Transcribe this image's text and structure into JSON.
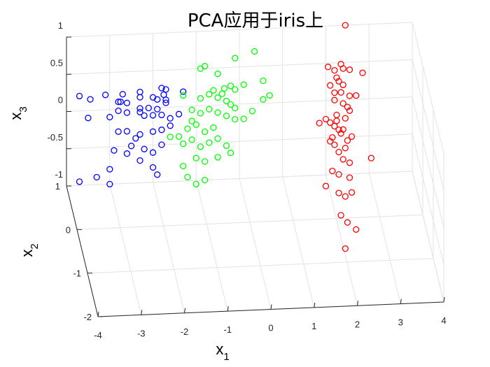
{
  "chart_data": {
    "type": "scatter",
    "title": "PCA应用于iris上",
    "xlabel": "x",
    "xlabel_sub": "1",
    "ylabel": "x",
    "ylabel_sub": "2",
    "zlabel": "x",
    "zlabel_sub": "3",
    "xlim": [
      -4,
      4
    ],
    "ylim": [
      -2,
      1
    ],
    "zlim": [
      -1,
      1
    ],
    "xticks": [
      "-4",
      "-3",
      "-2",
      "-1",
      "0",
      "1",
      "2",
      "3",
      "4"
    ],
    "yticks": [
      "-2",
      "-1",
      "0",
      "1"
    ],
    "zticks": [
      "-1",
      "-0.5",
      "0",
      "0.5",
      "1"
    ],
    "grid": true,
    "marker": "open-circle",
    "series": [
      {
        "color": "#0000ff",
        "points": [
          [
            -3.7,
            0.2
          ],
          [
            -3.45,
            0.15
          ],
          [
            -3.1,
            0.2
          ],
          [
            -2.8,
            0.1
          ],
          [
            -2.7,
            0.2
          ],
          [
            -2.75,
            0.1
          ],
          [
            -2.3,
            0.22
          ],
          [
            -2.0,
            0.14
          ],
          [
            -1.8,
            0.26
          ],
          [
            -1.7,
            0.24
          ],
          [
            -1.3,
            0.2
          ],
          [
            -1.7,
            0.1
          ],
          [
            -1.75,
            0.17
          ],
          [
            -1.9,
            0.11
          ],
          [
            -2.3,
            -0.05
          ],
          [
            -2.6,
            0.08
          ],
          [
            -2.3,
            0.15
          ],
          [
            -3.5,
            -0.1
          ],
          [
            -3.0,
            -0.1
          ],
          [
            -2.8,
            -0.02
          ],
          [
            -2.6,
            -0.05
          ],
          [
            -2.3,
            0.0
          ],
          [
            -2.1,
            0.0
          ],
          [
            -1.9,
            -0.02
          ],
          [
            -1.7,
            0.06
          ],
          [
            -2.2,
            -0.1
          ],
          [
            -2.0,
            -0.1
          ],
          [
            -1.8,
            -0.1
          ],
          [
            -1.6,
            -0.15
          ],
          [
            -1.4,
            -0.1
          ],
          [
            -2.8,
            -0.3
          ],
          [
            -2.6,
            -0.3
          ],
          [
            -2.4,
            -0.4
          ],
          [
            -2.3,
            -0.35
          ],
          [
            -2.0,
            -0.32
          ],
          [
            -1.8,
            -0.3
          ],
          [
            -1.6,
            -0.25
          ],
          [
            -2.9,
            -0.55
          ],
          [
            -2.5,
            -0.5
          ],
          [
            -2.2,
            -0.55
          ],
          [
            -2.0,
            -0.6
          ],
          [
            -1.8,
            -0.5
          ],
          [
            -3.7,
            -0.95
          ],
          [
            -3.3,
            -0.9
          ],
          [
            -3.0,
            -0.8
          ],
          [
            -2.6,
            -0.6
          ],
          [
            -2.3,
            -0.7
          ],
          [
            -3.0,
            -1.0
          ],
          [
            -2.0,
            -0.8
          ],
          [
            -1.9,
            -0.9
          ]
        ]
      },
      {
        "color": "#00ff00",
        "points": [
          [
            0.35,
            0.7
          ],
          [
            -0.1,
            0.62
          ],
          [
            -0.5,
            0.42
          ],
          [
            -0.8,
            0.53
          ],
          [
            -0.9,
            0.5
          ],
          [
            -0.35,
            0.22
          ],
          [
            0.1,
            0.26
          ],
          [
            0.55,
            0.3
          ],
          [
            0.7,
            0.1
          ],
          [
            0.55,
            0.05
          ],
          [
            -0.1,
            0.2
          ],
          [
            -0.2,
            0.25
          ],
          [
            -0.4,
            0.15
          ],
          [
            -0.6,
            0.2
          ],
          [
            -0.2,
            0.0
          ],
          [
            -0.1,
            -0.05
          ],
          [
            -0.3,
            0.05
          ],
          [
            -0.5,
            0.1
          ],
          [
            -0.7,
            0.15
          ],
          [
            -0.9,
            0.1
          ],
          [
            -1.3,
            0.15
          ],
          [
            -1.1,
            -0.05
          ],
          [
            -0.9,
            -0.1
          ],
          [
            -0.7,
            -0.05
          ],
          [
            -0.5,
            -0.1
          ],
          [
            -0.3,
            -0.15
          ],
          [
            -0.1,
            -0.2
          ],
          [
            0.1,
            -0.2
          ],
          [
            0.3,
            -0.1
          ],
          [
            -0.6,
            -0.3
          ],
          [
            -0.8,
            -0.35
          ],
          [
            -1.0,
            -0.25
          ],
          [
            -1.2,
            -0.3
          ],
          [
            -1.4,
            -0.4
          ],
          [
            -1.6,
            -0.4
          ],
          [
            -1.3,
            -0.5
          ],
          [
            -1.1,
            -0.45
          ],
          [
            -0.9,
            -0.55
          ],
          [
            -0.7,
            -0.5
          ],
          [
            -0.5,
            -0.45
          ],
          [
            -0.3,
            -0.55
          ],
          [
            -0.2,
            -0.65
          ],
          [
            -0.5,
            -0.7
          ],
          [
            -0.8,
            -0.75
          ],
          [
            -1.0,
            -0.7
          ],
          [
            -1.3,
            -0.8
          ],
          [
            -1.2,
            -0.95
          ],
          [
            -1.0,
            -1.05
          ],
          [
            -0.8,
            -1.0
          ],
          [
            -1.1,
            -0.2
          ]
        ]
      },
      {
        "color": "#ff0000",
        "points": [
          [
            2.45,
            1.0
          ],
          [
            2.05,
            0.45
          ],
          [
            2.2,
            0.4
          ],
          [
            2.35,
            0.48
          ],
          [
            2.4,
            0.42
          ],
          [
            2.55,
            0.4
          ],
          [
            2.85,
            0.35
          ],
          [
            2.25,
            0.3
          ],
          [
            2.1,
            0.2
          ],
          [
            2.3,
            0.25
          ],
          [
            2.4,
            0.2
          ],
          [
            2.2,
            0.1
          ],
          [
            2.35,
            0.1
          ],
          [
            2.55,
            0.05
          ],
          [
            2.7,
            0.05
          ],
          [
            2.2,
            0.0
          ],
          [
            2.4,
            -0.05
          ],
          [
            2.5,
            -0.1
          ],
          [
            2.25,
            -0.2
          ],
          [
            2.45,
            -0.25
          ],
          [
            2.55,
            -0.15
          ],
          [
            1.85,
            -0.3
          ],
          [
            2.0,
            -0.25
          ],
          [
            2.1,
            -0.3
          ],
          [
            2.2,
            -0.35
          ],
          [
            2.25,
            -0.28
          ],
          [
            2.3,
            -0.4
          ],
          [
            2.35,
            -0.45
          ],
          [
            2.4,
            -0.4
          ],
          [
            2.5,
            -0.55
          ],
          [
            2.6,
            -0.5
          ],
          [
            2.45,
            -0.65
          ],
          [
            2.2,
            -0.6
          ],
          [
            2.1,
            -0.55
          ],
          [
            2.3,
            -0.7
          ],
          [
            2.4,
            -0.8
          ],
          [
            2.55,
            -0.85
          ],
          [
            3.05,
            -0.8
          ],
          [
            2.15,
            -0.95
          ],
          [
            2.3,
            -1.0
          ],
          [
            2.55,
            -1.05
          ],
          [
            2.0,
            -1.15
          ],
          [
            2.3,
            -1.25
          ],
          [
            2.45,
            -1.3
          ],
          [
            2.6,
            -1.25
          ],
          [
            2.35,
            -1.55
          ],
          [
            2.5,
            -1.65
          ],
          [
            2.7,
            -1.75
          ],
          [
            2.45,
            -2.0
          ],
          [
            2.15,
            -0.5
          ]
        ]
      }
    ]
  }
}
